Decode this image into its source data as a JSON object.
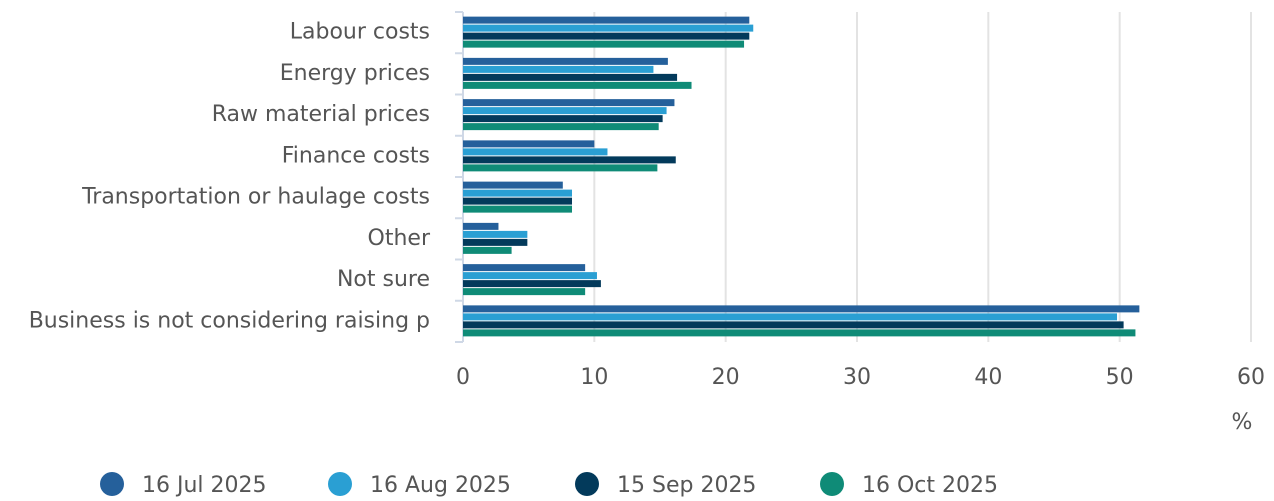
{
  "chart_data": {
    "type": "hbar",
    "categories": [
      "Labour costs",
      "Energy prices",
      "Raw material prices",
      "Finance costs",
      "Transportation or haulage costs",
      "Other",
      "Not sure",
      "Business is not considering raising p"
    ],
    "series": [
      {
        "name": "16 Jul 2025",
        "color": "#25609b",
        "values": [
          21.8,
          15.6,
          16.1,
          10.0,
          7.6,
          2.7,
          9.3,
          51.5
        ]
      },
      {
        "name": "16 Aug 2025",
        "color": "#2a9fd3",
        "values": [
          22.1,
          14.5,
          15.5,
          11.0,
          8.3,
          4.9,
          10.2,
          49.8
        ]
      },
      {
        "name": "15 Sep 2025",
        "color": "#033a5b",
        "values": [
          21.8,
          16.3,
          15.2,
          16.2,
          8.3,
          4.9,
          10.5,
          50.3
        ]
      },
      {
        "name": "16 Oct 2025",
        "color": "#0f8b77",
        "values": [
          21.4,
          17.4,
          14.9,
          14.8,
          8.3,
          3.7,
          9.3,
          51.2
        ]
      }
    ],
    "xlabel": "%",
    "xlim": [
      0,
      60
    ],
    "xticks": [
      0,
      10,
      20,
      30,
      40,
      50,
      60
    ],
    "grid": true
  }
}
